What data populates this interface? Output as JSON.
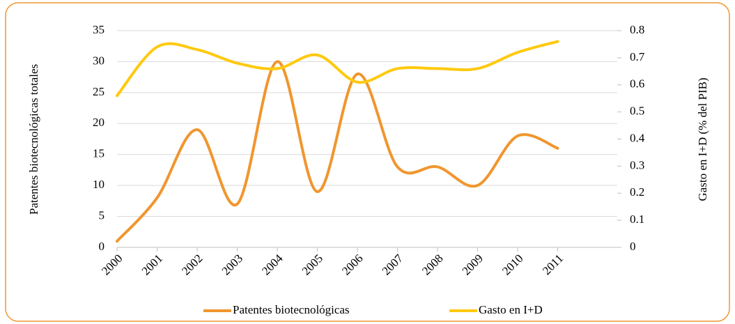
{
  "chart_data": {
    "type": "line",
    "categories": [
      "2000",
      "2001",
      "2002",
      "2003",
      "2004",
      "2005",
      "2006",
      "2007",
      "2008",
      "2009",
      "2010",
      "2011"
    ],
    "ylabel": "Patentes biotecnológicas totales",
    "y2label": "Gasto en I+D (% del PIB)",
    "ylim": [
      0,
      35
    ],
    "yticks": [
      0,
      5,
      10,
      15,
      20,
      25,
      30,
      35
    ],
    "y2lim": [
      0,
      0.8
    ],
    "y2ticks": [
      0,
      0.1,
      0.2,
      0.3,
      0.4,
      0.5,
      0.6,
      0.7,
      0.8
    ],
    "grid": true,
    "legend": "bottom",
    "series": [
      {
        "name": "Patentes biotecnológicas",
        "color": "#f0962e",
        "values": [
          1,
          8,
          19,
          7,
          30,
          9,
          28,
          13,
          13,
          10,
          18,
          16
        ]
      },
      {
        "name": "Gasto en I+D",
        "color": "#ffc90e",
        "axis": "y2",
        "values": [
          0.56,
          0.74,
          0.73,
          0.68,
          0.66,
          0.71,
          0.61,
          0.66,
          0.66,
          0.66,
          0.72,
          0.76
        ]
      }
    ]
  }
}
